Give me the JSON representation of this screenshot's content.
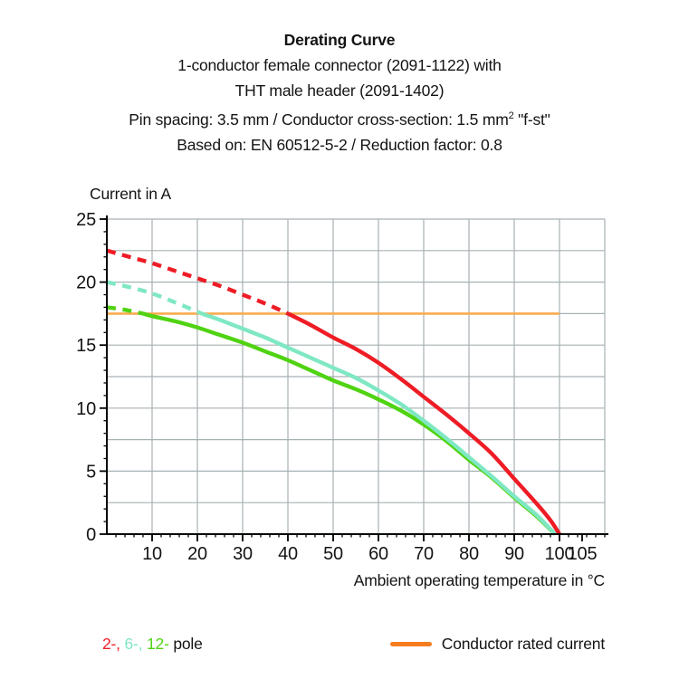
{
  "title": {
    "line1": "Derating Curve",
    "line2": "1-conductor female connector (2091-1122) with",
    "line3": "THT male header (2091-1402)",
    "line4_pre": "Pin spacing: 3.5 mm / Conductor cross-section: 1.5 mm",
    "line4_sup": "2",
    "line4_post": " \"f-st\"",
    "line5": "Based on: EN 60512-5-2 / Reduction factor: 0.8"
  },
  "chart_data": {
    "type": "line",
    "title": "Derating Curve",
    "ylabel": "Current in A",
    "xlabel": "Ambient operating temperature in °C",
    "xlim": [
      0,
      110
    ],
    "ylim": [
      0,
      25
    ],
    "x_ticks": [
      10,
      20,
      30,
      40,
      50,
      60,
      70,
      80,
      90,
      100,
      105
    ],
    "x_minor_step": 2,
    "y_ticks": [
      0,
      5,
      10,
      15,
      20,
      25
    ],
    "y_minor_step": 1,
    "grid": {
      "x_step": 10,
      "y_step": 2.5,
      "color": "#a6b1b3"
    },
    "axis_color": "#000000",
    "rated_current": {
      "label": "Conductor rated current",
      "value": 17.5,
      "x_start": 0,
      "x_end": 100,
      "line_color": "#f9ab4f",
      "swatch_color": "#f57d20"
    },
    "series": [
      {
        "name": "12-pole",
        "color": "#50d312",
        "dash_until": 8,
        "points": [
          [
            0,
            18.0
          ],
          [
            4,
            17.8
          ],
          [
            8,
            17.5
          ],
          [
            10,
            17.3
          ],
          [
            15,
            16.9
          ],
          [
            20,
            16.4
          ],
          [
            25,
            15.8
          ],
          [
            30,
            15.2
          ],
          [
            35,
            14.5
          ],
          [
            40,
            13.8
          ],
          [
            45,
            13.0
          ],
          [
            50,
            12.2
          ],
          [
            55,
            11.5
          ],
          [
            60,
            10.7
          ],
          [
            65,
            9.8
          ],
          [
            70,
            8.7
          ],
          [
            75,
            7.4
          ],
          [
            80,
            5.9
          ],
          [
            85,
            4.5
          ],
          [
            90,
            2.9
          ],
          [
            95,
            1.4
          ],
          [
            99,
            0
          ]
        ]
      },
      {
        "name": "6-pole",
        "color": "#7fe8c3",
        "dash_until": 21,
        "points": [
          [
            0,
            20.0
          ],
          [
            5,
            19.6
          ],
          [
            10,
            19.1
          ],
          [
            15,
            18.4
          ],
          [
            21,
            17.5
          ],
          [
            25,
            17.0
          ],
          [
            30,
            16.3
          ],
          [
            35,
            15.6
          ],
          [
            40,
            14.8
          ],
          [
            45,
            14.0
          ],
          [
            50,
            13.2
          ],
          [
            55,
            12.4
          ],
          [
            60,
            11.4
          ],
          [
            65,
            10.3
          ],
          [
            70,
            9.0
          ],
          [
            75,
            7.6
          ],
          [
            80,
            6.1
          ],
          [
            85,
            4.6
          ],
          [
            90,
            3.0
          ],
          [
            95,
            1.5
          ],
          [
            99,
            0
          ]
        ]
      },
      {
        "name": "2-pole",
        "color": "#ee1c25",
        "dash_until": 40,
        "points": [
          [
            0,
            22.5
          ],
          [
            5,
            22.0
          ],
          [
            10,
            21.5
          ],
          [
            15,
            20.9
          ],
          [
            20,
            20.3
          ],
          [
            25,
            19.7
          ],
          [
            30,
            19.0
          ],
          [
            35,
            18.3
          ],
          [
            40,
            17.5
          ],
          [
            45,
            16.6
          ],
          [
            50,
            15.6
          ],
          [
            55,
            14.7
          ],
          [
            60,
            13.6
          ],
          [
            65,
            12.3
          ],
          [
            70,
            10.9
          ],
          [
            75,
            9.5
          ],
          [
            80,
            8.0
          ],
          [
            85,
            6.4
          ],
          [
            90,
            4.4
          ],
          [
            95,
            2.4
          ],
          [
            98,
            1.1
          ],
          [
            100,
            0
          ]
        ]
      }
    ],
    "legend_position": "bottom"
  },
  "legend": {
    "pole_items": [
      {
        "label": "2-, ",
        "color": "#ee1c25"
      },
      {
        "label": "6-, ",
        "color": "#7fe8c3"
      },
      {
        "label": "12- ",
        "color": "#50d312"
      }
    ],
    "pole_suffix": "pole",
    "rated_label": "Conductor rated current"
  }
}
